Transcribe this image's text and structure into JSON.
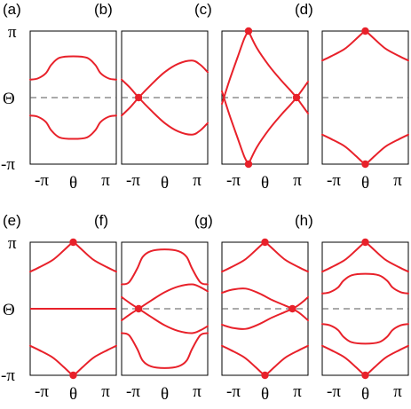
{
  "figure": {
    "colors": {
      "band": "#e8212a",
      "point": "#e8212a",
      "dashed_line": "#555555",
      "frame": "#000000"
    },
    "y_tick_labels": {
      "top": "π",
      "middle": "Θ",
      "bottom": "-π"
    },
    "x_tick_labels": {
      "left": "-π",
      "center": "θ",
      "right": "π"
    },
    "panels": [
      {
        "label": "(a)",
        "theta_line": "dashed",
        "bands": [
          {
            "x": [
              -3.1416,
              -2.6,
              -2.0,
              -1.6,
              -1.0,
              0,
              1.0,
              1.6,
              2.0,
              2.6,
              3.1416
            ],
            "y": [
              0.85,
              0.9,
              1.15,
              1.55,
              1.88,
              1.95,
              1.88,
              1.55,
              1.15,
              0.9,
              0.85
            ]
          },
          {
            "x": [
              -3.1416,
              -2.6,
              -2.0,
              -1.6,
              -1.0,
              0,
              1.0,
              1.6,
              2.0,
              2.6,
              3.1416
            ],
            "y": [
              -0.85,
              -0.9,
              -1.15,
              -1.55,
              -1.88,
              -1.95,
              -1.88,
              -1.55,
              -1.15,
              -0.9,
              -0.85
            ]
          }
        ],
        "points": []
      },
      {
        "label": "(b)",
        "theta_line": "dashed",
        "bands": [
          {
            "x": [
              -3.1416,
              -2.5,
              -1.9,
              -1.0,
              0,
              1.0,
              2.0,
              2.6,
              3.1416
            ],
            "y": [
              0.85,
              0.45,
              0.0,
              -0.6,
              -1.2,
              -1.6,
              -1.75,
              -1.55,
              -1.2
            ]
          },
          {
            "x": [
              -3.1416,
              -2.5,
              -1.9,
              -1.0,
              0,
              1.0,
              2.0,
              2.6,
              3.1416
            ],
            "y": [
              -0.85,
              -0.45,
              0.0,
              0.6,
              1.2,
              1.6,
              1.75,
              1.55,
              1.2
            ]
          }
        ],
        "points": [
          {
            "x": -1.9,
            "y": 0.0
          }
        ]
      },
      {
        "label": "(c)",
        "theta_line": "dashed",
        "bands": [
          {
            "x": [
              -3.1416,
              -2.6,
              -2.0,
              -1.5,
              -1.2
            ],
            "y": [
              -0.3,
              0.8,
              1.9,
              2.8,
              3.1416
            ]
          },
          {
            "x": [
              -3.1416,
              -2.6,
              -2.0,
              -1.5,
              -1.2
            ],
            "y": [
              0.3,
              -0.8,
              -1.9,
              -2.8,
              -3.1416
            ]
          },
          {
            "x": [
              -1.2,
              -0.6,
              0.3,
              1.2,
              1.8,
              2.3,
              2.7,
              3.1416
            ],
            "y": [
              3.1416,
              2.35,
              1.5,
              0.8,
              0.38,
              0.0,
              -0.35,
              -0.75
            ]
          },
          {
            "x": [
              -1.2,
              -0.6,
              0.3,
              1.2,
              1.8,
              2.3,
              2.7,
              3.1416
            ],
            "y": [
              -3.1416,
              -2.35,
              -1.5,
              -0.8,
              -0.38,
              0.0,
              0.35,
              0.75
            ]
          }
        ],
        "points": [
          {
            "x": -1.2,
            "y": 3.1416
          },
          {
            "x": -1.2,
            "y": -3.1416
          },
          {
            "x": 2.3,
            "y": 0.0
          }
        ]
      },
      {
        "label": "(d)",
        "theta_line": "dashed",
        "bands": [
          {
            "x": [
              -3.1416,
              -2.5,
              -1.5,
              -0.7,
              -0.15,
              0,
              0.15,
              0.7,
              1.5,
              2.5,
              3.1416
            ],
            "y": [
              1.75,
              1.95,
              2.3,
              2.75,
              3.08,
              3.1416,
              3.08,
              2.75,
              2.3,
              1.95,
              1.75
            ]
          },
          {
            "x": [
              -3.1416,
              -2.5,
              -1.5,
              -0.7,
              -0.15,
              0,
              0.15,
              0.7,
              1.5,
              2.5,
              3.1416
            ],
            "y": [
              -1.75,
              -1.95,
              -2.3,
              -2.75,
              -3.08,
              -3.1416,
              -3.08,
              -2.75,
              -2.3,
              -1.95,
              -1.75
            ]
          }
        ],
        "points": [
          {
            "x": 0,
            "y": 3.1416
          },
          {
            "x": 0,
            "y": -3.1416
          }
        ]
      },
      {
        "label": "(e)",
        "theta_line": "solid",
        "bands": [
          {
            "x": [
              -3.1416,
              -2.5,
              -1.5,
              -0.7,
              -0.15,
              0,
              0.15,
              0.7,
              1.5,
              2.5,
              3.1416
            ],
            "y": [
              1.75,
              1.95,
              2.3,
              2.75,
              3.08,
              3.1416,
              3.08,
              2.75,
              2.3,
              1.95,
              1.75
            ]
          },
          {
            "x": [
              -3.1416,
              -2.5,
              -1.5,
              -0.7,
              -0.15,
              0,
              0.15,
              0.7,
              1.5,
              2.5,
              3.1416
            ],
            "y": [
              -1.75,
              -1.95,
              -2.3,
              -2.75,
              -3.08,
              -3.1416,
              -3.08,
              -2.75,
              -2.3,
              -1.95,
              -1.75
            ]
          }
        ],
        "points": [
          {
            "x": 0,
            "y": 3.1416
          },
          {
            "x": 0,
            "y": -3.1416
          }
        ]
      },
      {
        "label": "(f)",
        "theta_line": "dashed",
        "bands": [
          {
            "x": [
              -3.1416,
              -2.6,
              -2.0,
              -1.6,
              -1.0,
              0,
              1.0,
              1.6,
              2.0,
              2.6,
              3.1416
            ],
            "y": [
              1.15,
              1.25,
              1.9,
              2.45,
              2.72,
              2.8,
              2.72,
              2.45,
              1.9,
              1.25,
              1.15
            ]
          },
          {
            "x": [
              -3.1416,
              -2.6,
              -2.0,
              -1.6,
              -1.0,
              0,
              1.0,
              1.6,
              2.0,
              2.6,
              3.1416
            ],
            "y": [
              -1.15,
              -1.25,
              -1.9,
              -2.45,
              -2.72,
              -2.8,
              -2.72,
              -2.45,
              -1.9,
              -1.25,
              -1.15
            ]
          },
          {
            "x": [
              -3.1416,
              -2.5,
              -1.9,
              -1.0,
              0,
              1.0,
              2.0,
              2.6,
              3.1416
            ],
            "y": [
              0.55,
              0.25,
              0.0,
              -0.38,
              -0.78,
              -1.05,
              -1.15,
              -1.02,
              -0.82
            ]
          },
          {
            "x": [
              -3.1416,
              -2.5,
              -1.9,
              -1.0,
              0,
              1.0,
              2.0,
              2.6,
              3.1416
            ],
            "y": [
              -0.55,
              -0.25,
              0.0,
              0.38,
              0.78,
              1.05,
              1.15,
              1.02,
              0.82
            ]
          }
        ],
        "points": [
          {
            "x": -1.9,
            "y": 0.0
          }
        ]
      },
      {
        "label": "(g)",
        "theta_line": "dashed",
        "bands": [
          {
            "x": [
              -3.1416,
              -2.5,
              -1.5,
              -0.7,
              -0.15,
              0,
              0.15,
              0.7,
              1.5,
              2.5,
              3.1416
            ],
            "y": [
              1.75,
              1.95,
              2.3,
              2.75,
              3.08,
              3.1416,
              3.08,
              2.75,
              2.3,
              1.95,
              1.75
            ]
          },
          {
            "x": [
              -3.1416,
              -2.5,
              -1.5,
              -0.7,
              -0.15,
              0,
              0.15,
              0.7,
              1.5,
              2.5,
              3.1416
            ],
            "y": [
              -1.75,
              -1.95,
              -2.3,
              -2.75,
              -3.08,
              -3.1416,
              -3.08,
              -2.75,
              -2.3,
              -1.95,
              -1.75
            ]
          },
          {
            "x": [
              -3.1416,
              -2.4,
              -1.4,
              -0.4,
              0.5,
              1.4,
              2.0,
              2.4,
              2.8,
              3.1416
            ],
            "y": [
              0.75,
              0.9,
              0.95,
              0.72,
              0.42,
              0.17,
              0.0,
              -0.15,
              -0.35,
              -0.55
            ]
          },
          {
            "x": [
              -3.1416,
              -2.4,
              -1.4,
              -0.4,
              0.5,
              1.4,
              2.0,
              2.4,
              2.8,
              3.1416
            ],
            "y": [
              -0.75,
              -0.9,
              -0.95,
              -0.72,
              -0.42,
              -0.17,
              0.0,
              0.15,
              0.35,
              0.55
            ]
          }
        ],
        "points": [
          {
            "x": 0,
            "y": 3.1416
          },
          {
            "x": 0,
            "y": -3.1416
          },
          {
            "x": 2.0,
            "y": 0.0
          }
        ]
      },
      {
        "label": "(h)",
        "theta_line": "dashed",
        "bands": [
          {
            "x": [
              -3.1416,
              -2.5,
              -1.5,
              -0.7,
              -0.15,
              0,
              0.15,
              0.7,
              1.5,
              2.5,
              3.1416
            ],
            "y": [
              1.75,
              1.95,
              2.3,
              2.75,
              3.08,
              3.1416,
              3.08,
              2.75,
              2.3,
              1.95,
              1.75
            ]
          },
          {
            "x": [
              -3.1416,
              -2.5,
              -1.5,
              -0.7,
              -0.15,
              0,
              0.15,
              0.7,
              1.5,
              2.5,
              3.1416
            ],
            "y": [
              -1.75,
              -1.95,
              -2.3,
              -2.75,
              -3.08,
              -3.1416,
              -3.08,
              -2.75,
              -2.3,
              -1.95,
              -1.75
            ]
          },
          {
            "x": [
              -3.1416,
              -2.6,
              -2.0,
              -1.6,
              -1.0,
              0,
              1.0,
              1.6,
              2.0,
              2.6,
              3.1416
            ],
            "y": [
              0.72,
              0.78,
              1.0,
              1.32,
              1.58,
              1.65,
              1.58,
              1.32,
              1.0,
              0.78,
              0.72
            ]
          },
          {
            "x": [
              -3.1416,
              -2.6,
              -2.0,
              -1.6,
              -1.0,
              0,
              1.0,
              1.6,
              2.0,
              2.6,
              3.1416
            ],
            "y": [
              -0.72,
              -0.78,
              -1.0,
              -1.32,
              -1.58,
              -1.65,
              -1.58,
              -1.32,
              -1.0,
              -0.78,
              -0.72
            ]
          }
        ],
        "points": [
          {
            "x": 0,
            "y": 3.1416
          },
          {
            "x": 0,
            "y": -3.1416
          }
        ]
      }
    ]
  }
}
